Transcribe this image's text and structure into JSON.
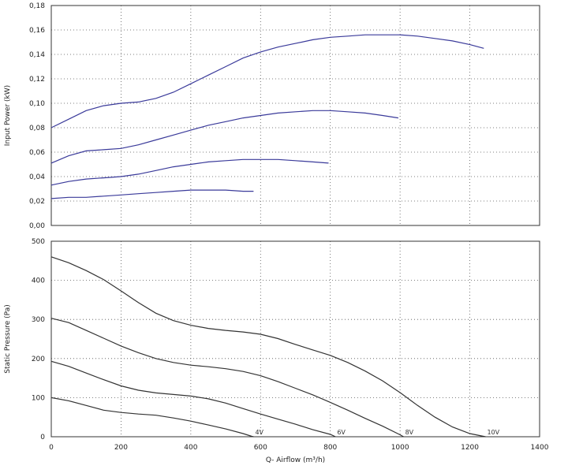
{
  "chart_data": [
    {
      "type": "line",
      "ylabel": "Input Power (kW)",
      "xlabel": "",
      "xlim": [
        0,
        1400
      ],
      "ylim": [
        0,
        0.18
      ],
      "grid": true,
      "x_ticks": [
        0,
        200,
        400,
        600,
        800,
        1000,
        1200,
        1400
      ],
      "y_ticks": [
        "0,00",
        "0,02",
        "0,04",
        "0,06",
        "0,08",
        "0,10",
        "0,12",
        "0,14",
        "0,16",
        "0,18"
      ],
      "series": [
        {
          "color": "#3a3a9a",
          "points": [
            [
              0,
              0.08
            ],
            [
              50,
              0.087
            ],
            [
              100,
              0.094
            ],
            [
              150,
              0.098
            ],
            [
              200,
              0.1
            ],
            [
              250,
              0.101
            ],
            [
              300,
              0.104
            ],
            [
              350,
              0.109
            ],
            [
              400,
              0.116
            ],
            [
              450,
              0.123
            ],
            [
              500,
              0.13
            ],
            [
              550,
              0.137
            ],
            [
              600,
              0.142
            ],
            [
              650,
              0.146
            ],
            [
              700,
              0.149
            ],
            [
              750,
              0.152
            ],
            [
              800,
              0.154
            ],
            [
              850,
              0.155
            ],
            [
              900,
              0.156
            ],
            [
              950,
              0.156
            ],
            [
              1000,
              0.156
            ],
            [
              1050,
              0.155
            ],
            [
              1100,
              0.153
            ],
            [
              1150,
              0.151
            ],
            [
              1200,
              0.148
            ],
            [
              1240,
              0.145
            ]
          ]
        },
        {
          "color": "#3a3a9a",
          "points": [
            [
              0,
              0.051
            ],
            [
              50,
              0.057
            ],
            [
              100,
              0.061
            ],
            [
              150,
              0.062
            ],
            [
              200,
              0.063
            ],
            [
              250,
              0.066
            ],
            [
              300,
              0.07
            ],
            [
              350,
              0.074
            ],
            [
              400,
              0.078
            ],
            [
              450,
              0.082
            ],
            [
              500,
              0.085
            ],
            [
              550,
              0.088
            ],
            [
              600,
              0.09
            ],
            [
              650,
              0.092
            ],
            [
              700,
              0.093
            ],
            [
              750,
              0.094
            ],
            [
              800,
              0.094
            ],
            [
              850,
              0.093
            ],
            [
              900,
              0.092
            ],
            [
              950,
              0.09
            ],
            [
              995,
              0.088
            ]
          ]
        },
        {
          "color": "#3a3a9a",
          "points": [
            [
              0,
              0.033
            ],
            [
              50,
              0.036
            ],
            [
              100,
              0.038
            ],
            [
              150,
              0.039
            ],
            [
              200,
              0.04
            ],
            [
              250,
              0.042
            ],
            [
              300,
              0.045
            ],
            [
              350,
              0.048
            ],
            [
              400,
              0.05
            ],
            [
              450,
              0.052
            ],
            [
              500,
              0.053
            ],
            [
              550,
              0.054
            ],
            [
              600,
              0.054
            ],
            [
              650,
              0.054
            ],
            [
              700,
              0.053
            ],
            [
              750,
              0.052
            ],
            [
              795,
              0.051
            ]
          ]
        },
        {
          "color": "#3a3a9a",
          "points": [
            [
              0,
              0.022
            ],
            [
              50,
              0.023
            ],
            [
              100,
              0.023
            ],
            [
              150,
              0.024
            ],
            [
              200,
              0.025
            ],
            [
              250,
              0.026
            ],
            [
              300,
              0.027
            ],
            [
              350,
              0.028
            ],
            [
              400,
              0.029
            ],
            [
              450,
              0.029
            ],
            [
              500,
              0.029
            ],
            [
              550,
              0.028
            ],
            [
              580,
              0.028
            ]
          ]
        }
      ]
    },
    {
      "type": "line",
      "xlabel": "Q- Airflow (m³/h)",
      "ylabel": "Static Pressure (Pa)",
      "xlim": [
        0,
        1400
      ],
      "ylim": [
        0,
        500
      ],
      "grid": true,
      "x_ticks": [
        0,
        200,
        400,
        600,
        800,
        1000,
        1200,
        1400
      ],
      "y_ticks": [
        0,
        100,
        200,
        300,
        400,
        500
      ],
      "series": [
        {
          "name": "10V",
          "color": "#333333",
          "points": [
            [
              0,
              460
            ],
            [
              50,
              445
            ],
            [
              100,
              425
            ],
            [
              150,
              402
            ],
            [
              200,
              373
            ],
            [
              250,
              343
            ],
            [
              300,
              316
            ],
            [
              350,
              297
            ],
            [
              400,
              285
            ],
            [
              450,
              277
            ],
            [
              500,
              272
            ],
            [
              550,
              268
            ],
            [
              600,
              262
            ],
            [
              650,
              251
            ],
            [
              700,
              236
            ],
            [
              750,
              222
            ],
            [
              800,
              208
            ],
            [
              850,
              190
            ],
            [
              900,
              168
            ],
            [
              950,
              143
            ],
            [
              1000,
              113
            ],
            [
              1050,
              80
            ],
            [
              1100,
              50
            ],
            [
              1150,
              25
            ],
            [
              1200,
              8
            ],
            [
              1245,
              0
            ]
          ]
        },
        {
          "name": "8V",
          "color": "#333333",
          "points": [
            [
              0,
              303
            ],
            [
              50,
              292
            ],
            [
              100,
              272
            ],
            [
              150,
              252
            ],
            [
              200,
              232
            ],
            [
              250,
              215
            ],
            [
              300,
              200
            ],
            [
              350,
              190
            ],
            [
              400,
              183
            ],
            [
              450,
              179
            ],
            [
              500,
              174
            ],
            [
              550,
              167
            ],
            [
              600,
              156
            ],
            [
              650,
              141
            ],
            [
              700,
              124
            ],
            [
              750,
              107
            ],
            [
              800,
              88
            ],
            [
              850,
              68
            ],
            [
              900,
              47
            ],
            [
              950,
              27
            ],
            [
              1000,
              5
            ],
            [
              1010,
              0
            ]
          ]
        },
        {
          "name": "6V",
          "color": "#333333",
          "points": [
            [
              0,
              193
            ],
            [
              50,
              180
            ],
            [
              100,
              163
            ],
            [
              150,
              146
            ],
            [
              200,
              130
            ],
            [
              250,
              119
            ],
            [
              300,
              112
            ],
            [
              350,
              108
            ],
            [
              400,
              104
            ],
            [
              450,
              97
            ],
            [
              500,
              86
            ],
            [
              550,
              72
            ],
            [
              600,
              58
            ],
            [
              650,
              45
            ],
            [
              700,
              32
            ],
            [
              750,
              18
            ],
            [
              800,
              6
            ],
            [
              815,
              0
            ]
          ]
        },
        {
          "name": "4V",
          "color": "#333333",
          "points": [
            [
              0,
              100
            ],
            [
              50,
              92
            ],
            [
              100,
              80
            ],
            [
              150,
              68
            ],
            [
              200,
              62
            ],
            [
              250,
              58
            ],
            [
              300,
              55
            ],
            [
              350,
              48
            ],
            [
              400,
              40
            ],
            [
              450,
              30
            ],
            [
              500,
              20
            ],
            [
              550,
              8
            ],
            [
              575,
              1
            ],
            [
              580,
              0
            ]
          ]
        }
      ]
    }
  ]
}
